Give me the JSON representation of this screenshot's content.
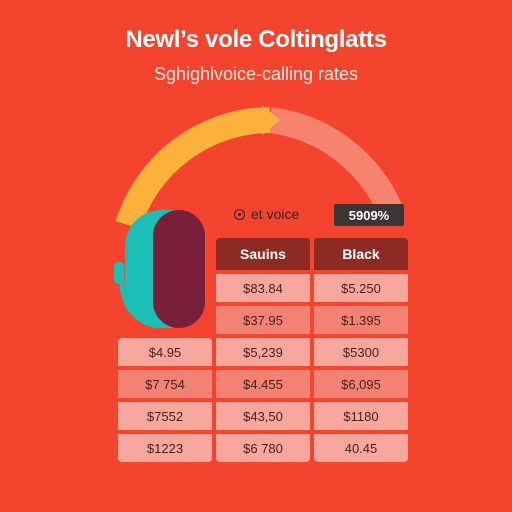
{
  "title": "Newl’s vole Coltinglatts",
  "subtitle": "Sghighlvoice-calling rates",
  "legend": {
    "icon": "target-icon",
    "label": "et voice"
  },
  "badge": "5909%",
  "gauge": {
    "colors": {
      "filled": "#fbb13c",
      "rest": "#f7836f"
    }
  },
  "table": {
    "left_column": [
      "$4.95",
      "$7 754",
      "$7552",
      "$1223"
    ],
    "middle_column": {
      "header": "Sauins",
      "cells": [
        "$83.84",
        "$37.95",
        "$5,239",
        "$4.455",
        "$43,50",
        "$6 780"
      ]
    },
    "right_column": {
      "header": "Black",
      "cells": [
        "$5.250",
        "$1.395",
        "$5300",
        "$6,095",
        "$1180",
        "40.45"
      ]
    }
  },
  "colors": {
    "background": "#f5442e",
    "headset_teal": "#1bbfb6",
    "headset_maroon": "#7a1f3a"
  }
}
